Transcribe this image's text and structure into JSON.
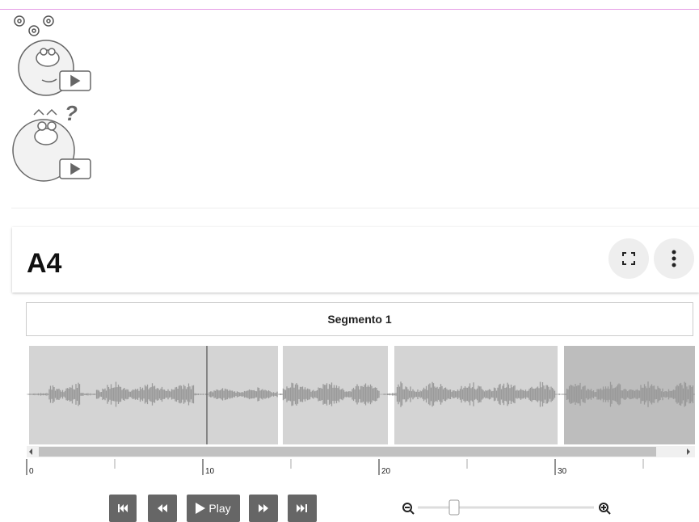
{
  "card": {
    "title": "A4"
  },
  "segment": {
    "label": "Segmento 1"
  },
  "timeline": {
    "ticks": [
      0,
      10,
      20,
      30
    ]
  },
  "controls": {
    "play": "Play"
  }
}
